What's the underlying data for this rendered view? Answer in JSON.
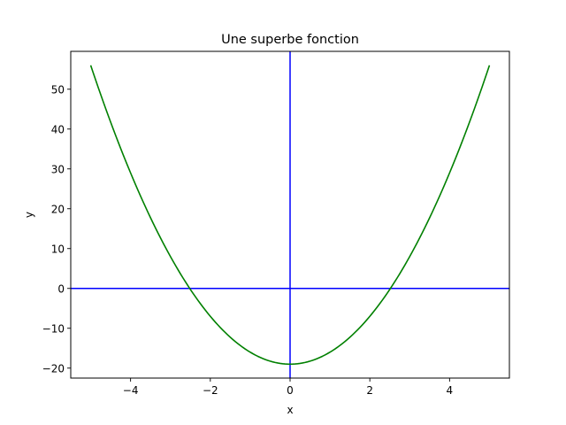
{
  "chart_data": {
    "type": "line",
    "title": "Une superbe fonction",
    "xlabel": "x",
    "ylabel": "y",
    "xlim": [
      -5.5,
      5.5
    ],
    "ylim": [
      -22.5,
      59.5
    ],
    "xticks": [
      -4,
      -2,
      0,
      2,
      4
    ],
    "xtick_labels": [
      "−4",
      "−2",
      "0",
      "2",
      "4"
    ],
    "yticks": [
      -20,
      -10,
      0,
      10,
      20,
      30,
      40,
      50
    ],
    "ytick_labels": [
      "−20",
      "−10",
      "0",
      "10",
      "20",
      "30",
      "40",
      "50"
    ],
    "grid": false,
    "series": [
      {
        "color": "#008000",
        "x": [
          -5,
          -4.5,
          -4,
          -3.5,
          -3,
          -2.5,
          -2,
          -1.5,
          -1,
          -0.5,
          0,
          0.5,
          1,
          1.5,
          2,
          2.5,
          3,
          3.5,
          4,
          4.5,
          5
        ],
        "y": [
          56,
          41.75,
          29,
          17.75,
          8,
          -0.25,
          -7,
          -12.25,
          -16,
          -18.25,
          -19,
          -18.25,
          -16,
          -12.25,
          -7,
          -0.25,
          8,
          17.75,
          29,
          41.75,
          56
        ]
      }
    ],
    "reference_lines": {
      "color": "#0000ff",
      "horizontal_y": 0,
      "vertical_x": 0
    }
  }
}
